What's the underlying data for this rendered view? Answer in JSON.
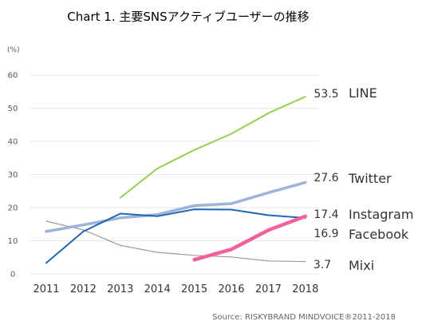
{
  "chart_data": {
    "type": "line",
    "title": "Chart 1. 主要SNSアクティブユーザーの推移",
    "y_unit": "(%)",
    "x": [
      "2011",
      "2012",
      "2013",
      "2014",
      "2015",
      "2016",
      "2017",
      "2018"
    ],
    "y_ticks": [
      "0",
      "10",
      "20",
      "30",
      "40",
      "50",
      "60"
    ],
    "ylim": [
      0,
      60
    ],
    "grid": "horizontal",
    "legend": "right-end labels",
    "series": [
      {
        "name": "LINE",
        "color": "#92d050",
        "width": 2,
        "values": [
          null,
          null,
          23.0,
          31.8,
          37.4,
          42.3,
          48.5,
          53.5
        ],
        "end_label": "53.5"
      },
      {
        "name": "Twitter",
        "color": "#9db3da",
        "width": 3.5,
        "values": [
          12.8,
          14.8,
          16.9,
          17.9,
          20.6,
          21.2,
          24.5,
          27.6
        ],
        "end_label": "27.6"
      },
      {
        "name": "Instagram",
        "color": "#f2609e",
        "width": 4.5,
        "values": [
          null,
          null,
          null,
          null,
          4.3,
          7.4,
          13.2,
          17.4
        ],
        "end_label": "17.4"
      },
      {
        "name": "Facebook",
        "color": "#1f66b3",
        "width": 2,
        "values": [
          3.3,
          12.8,
          18.2,
          17.4,
          19.5,
          19.4,
          17.7,
          16.9
        ],
        "end_label": "16.9"
      },
      {
        "name": "Mixi",
        "color": "#999999",
        "width": 1.2,
        "values": [
          15.9,
          13.3,
          8.6,
          6.5,
          5.6,
          5.1,
          3.9,
          3.7
        ],
        "end_label": "3.7"
      }
    ],
    "source": "Source: RISKYBRAND MINDVOICE®2011-2018"
  }
}
